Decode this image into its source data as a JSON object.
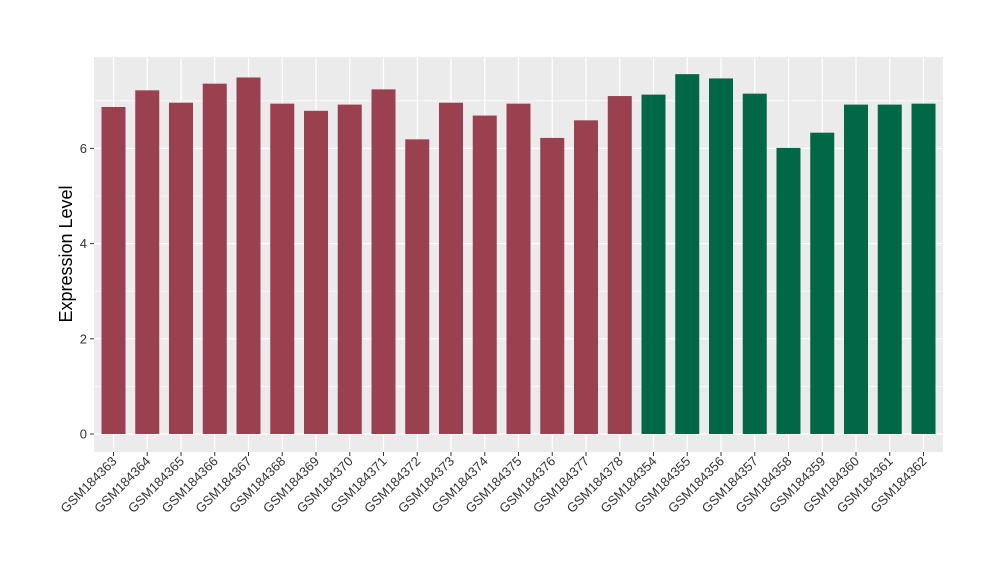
{
  "chart_data": {
    "type": "bar",
    "title": "",
    "xlabel": "",
    "ylabel": "Expression Level",
    "ylim": [
      0,
      8
    ],
    "yticks": [
      0,
      2,
      4,
      6
    ],
    "grid": true,
    "categories": [
      "GSM184363",
      "GSM184364",
      "GSM184365",
      "GSM184366",
      "GSM184367",
      "GSM184368",
      "GSM184369",
      "GSM184370",
      "GSM184371",
      "GSM184372",
      "GSM184373",
      "GSM184374",
      "GSM184375",
      "GSM184376",
      "GSM184377",
      "GSM184378",
      "GSM184354",
      "GSM184355",
      "GSM184356",
      "GSM184357",
      "GSM184358",
      "GSM184359",
      "GSM184360",
      "GSM184361",
      "GSM184362"
    ],
    "values": [
      6.87,
      7.22,
      6.96,
      7.36,
      7.49,
      6.94,
      6.79,
      6.92,
      7.24,
      6.19,
      6.96,
      6.69,
      6.94,
      6.22,
      6.59,
      7.1,
      7.13,
      7.56,
      7.47,
      7.15,
      6.01,
      6.33,
      6.92,
      6.92,
      6.94
    ],
    "bar_colors": [
      "#9b404f",
      "#9b404f",
      "#9b404f",
      "#9b404f",
      "#9b404f",
      "#9b404f",
      "#9b404f",
      "#9b404f",
      "#9b404f",
      "#9b404f",
      "#9b404f",
      "#9b404f",
      "#9b404f",
      "#9b404f",
      "#9b404f",
      "#9b404f",
      "#006847",
      "#006847",
      "#006847",
      "#006847",
      "#006847",
      "#006847",
      "#006847",
      "#006847",
      "#006847"
    ],
    "panel_background": "#ebebeb",
    "gridline_color": "#ffffff"
  }
}
